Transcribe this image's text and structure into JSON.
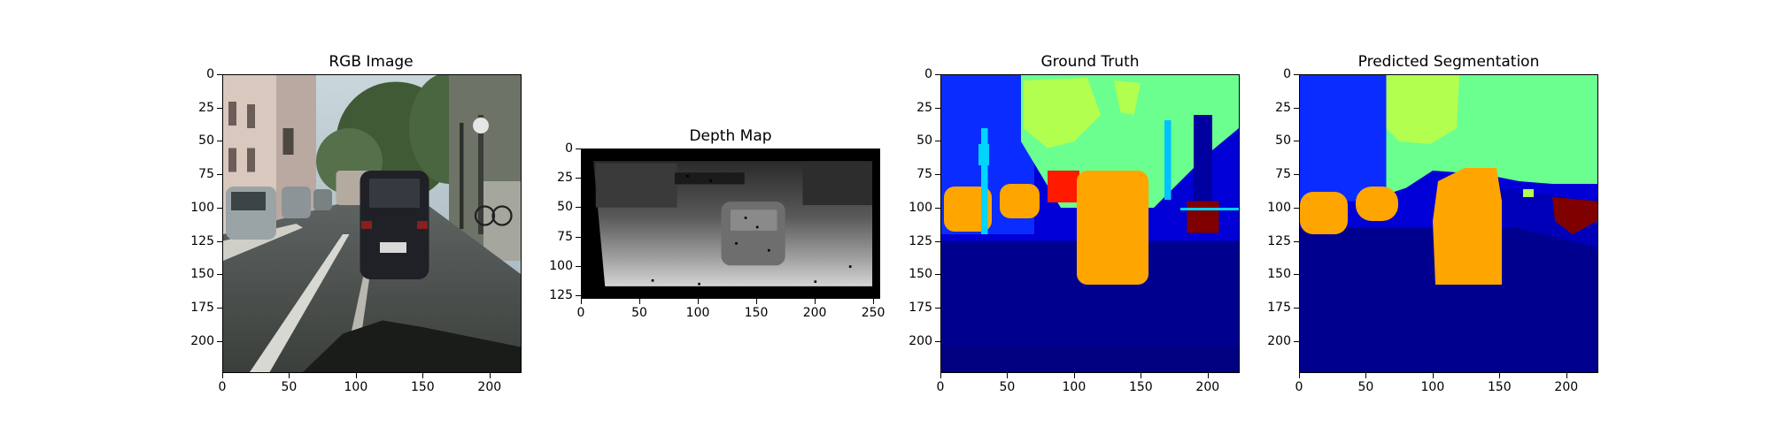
{
  "panels": [
    {
      "title": "RGB Image",
      "x_ticks": [
        "0",
        "50",
        "100",
        "150",
        "200"
      ],
      "y_ticks": [
        "0",
        "25",
        "50",
        "75",
        "100",
        "125",
        "150",
        "175",
        "200"
      ],
      "x_range": [
        0,
        224
      ],
      "y_range": [
        0,
        224
      ],
      "image_kind": "photo-street-scene"
    },
    {
      "title": "Depth Map",
      "x_ticks": [
        "0",
        "50",
        "100",
        "150",
        "200",
        "250"
      ],
      "y_ticks": [
        "0",
        "25",
        "50",
        "75",
        "100",
        "125"
      ],
      "x_range": [
        0,
        256
      ],
      "y_range": [
        0,
        128
      ],
      "image_kind": "grayscale-depth"
    },
    {
      "title": "Ground Truth",
      "x_ticks": [
        "0",
        "50",
        "100",
        "150",
        "200"
      ],
      "y_ticks": [
        "0",
        "25",
        "50",
        "75",
        "100",
        "125",
        "150",
        "175",
        "200"
      ],
      "x_range": [
        0,
        224
      ],
      "y_range": [
        0,
        224
      ],
      "image_kind": "segmentation-jet"
    },
    {
      "title": "Predicted Segmentation",
      "x_ticks": [
        "0",
        "50",
        "100",
        "150",
        "200"
      ],
      "y_ticks": [
        "0",
        "25",
        "50",
        "75",
        "100",
        "125",
        "150",
        "175",
        "200"
      ],
      "x_range": [
        0,
        224
      ],
      "y_range": [
        0,
        224
      ],
      "image_kind": "segmentation-jet"
    }
  ],
  "colors": {
    "road": "#00008f",
    "background": "#0000d6",
    "sky": "#0b2cff",
    "vegetation": "#6bff8f",
    "tree": "#b3ff4f",
    "car": "#ffa500",
    "person": "#ff1a00",
    "rider": "#800000"
  }
}
